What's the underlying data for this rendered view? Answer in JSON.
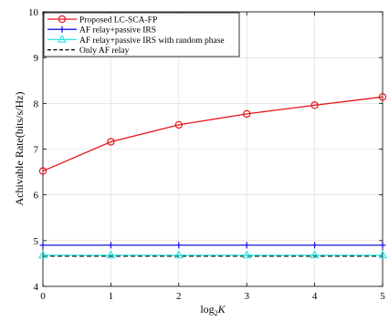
{
  "chart_data": {
    "type": "line",
    "title": "",
    "xlabel": "log2K",
    "xlabel_base": "log",
    "xlabel_sub": "2",
    "xlabel_var": "K",
    "ylabel": "Achivable Rate(bits/s/Hz)",
    "x": [
      0,
      1,
      2,
      3,
      4,
      5
    ],
    "xlim": [
      0,
      5
    ],
    "ylim": [
      4,
      10
    ],
    "xticks": [
      "0",
      "1",
      "2",
      "3",
      "4",
      "5"
    ],
    "yticks": [
      "4",
      "5",
      "6",
      "7",
      "8",
      "9",
      "10"
    ],
    "grid": true,
    "legend_position": "top-left",
    "series": [
      {
        "name": "Proposed LC-SCA-FP",
        "values": [
          6.52,
          7.16,
          7.53,
          7.77,
          7.96,
          8.14
        ],
        "color": "#e8141c",
        "marker": "circle",
        "dash": "solid"
      },
      {
        "name": "AF relay+passive IRS",
        "values": [
          4.9,
          4.9,
          4.9,
          4.9,
          4.9,
          4.9
        ],
        "color": "#1a1ae6",
        "marker": "plus",
        "dash": "solid"
      },
      {
        "name": "AF relay+passive IRS with random phase",
        "values": [
          4.68,
          4.68,
          4.68,
          4.68,
          4.68,
          4.68
        ],
        "color": "#2ee6e6",
        "marker": "triangle",
        "dash": "solid"
      },
      {
        "name": "Only AF relay",
        "values": [
          4.66,
          4.66,
          4.66,
          4.66,
          4.66,
          4.66
        ],
        "color": "#000000",
        "marker": "none",
        "dash": "dashed"
      }
    ]
  }
}
